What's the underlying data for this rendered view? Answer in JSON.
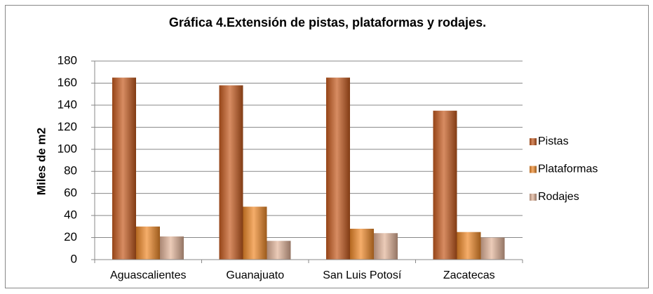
{
  "chart_data": {
    "type": "bar",
    "title": "Gráfica 4.Extensión de pistas, plataformas y rodajes.",
    "y_label": "Miles de m2",
    "categories": [
      "Aguascalientes",
      "Guanajuato",
      "San Luis Potosí",
      "Zacatecas"
    ],
    "series": [
      {
        "name": "Pistas",
        "color": "#c65a1e",
        "values": [
          165,
          158,
          165,
          135
        ]
      },
      {
        "name": "Plataformas",
        "color": "#f08a2a",
        "values": [
          30,
          48,
          28,
          25
        ]
      },
      {
        "name": "Rodajes",
        "color": "#e3b49a",
        "values": [
          21,
          17,
          24,
          20
        ]
      }
    ],
    "ylim": [
      0,
      180
    ],
    "yticks": [
      0,
      20,
      40,
      60,
      80,
      100,
      120,
      140,
      160,
      180
    ],
    "grid": true,
    "legend": "right"
  }
}
